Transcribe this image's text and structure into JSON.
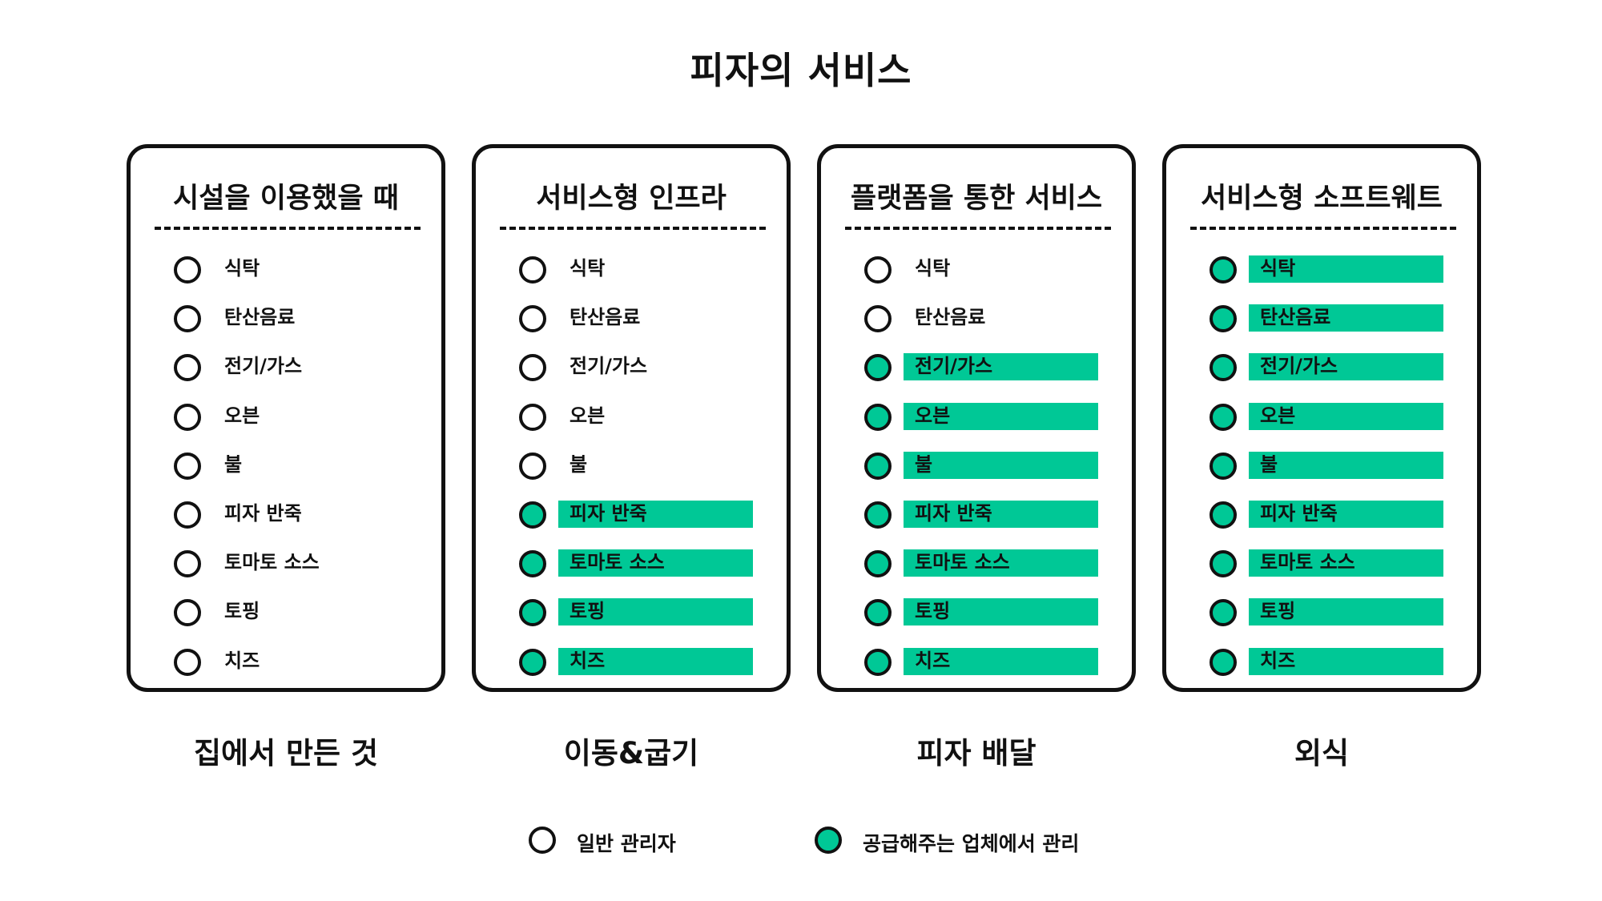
{
  "title": "피자의 서비스",
  "colors": {
    "accent": "#00c896",
    "outline": "#111111",
    "background": "#ffffff"
  },
  "cards": [
    {
      "title": "시설을 이용했을 때",
      "caption": "집에서 만든 것",
      "items": [
        {
          "label": "식탁",
          "managed_by_provider": false
        },
        {
          "label": "탄산음료",
          "managed_by_provider": false
        },
        {
          "label": "전기/가스",
          "managed_by_provider": false
        },
        {
          "label": "오븐",
          "managed_by_provider": false
        },
        {
          "label": "불",
          "managed_by_provider": false
        },
        {
          "label": "피자 반죽",
          "managed_by_provider": false
        },
        {
          "label": "토마토 소스",
          "managed_by_provider": false
        },
        {
          "label": "토핑",
          "managed_by_provider": false
        },
        {
          "label": "치즈",
          "managed_by_provider": false
        }
      ]
    },
    {
      "title": "서비스형 인프라",
      "caption": "이동&굽기",
      "items": [
        {
          "label": "식탁",
          "managed_by_provider": false
        },
        {
          "label": "탄산음료",
          "managed_by_provider": false
        },
        {
          "label": "전기/가스",
          "managed_by_provider": false
        },
        {
          "label": "오븐",
          "managed_by_provider": false
        },
        {
          "label": "불",
          "managed_by_provider": false
        },
        {
          "label": "피자 반죽",
          "managed_by_provider": true
        },
        {
          "label": "토마토 소스",
          "managed_by_provider": true
        },
        {
          "label": "토핑",
          "managed_by_provider": true
        },
        {
          "label": "치즈",
          "managed_by_provider": true
        }
      ]
    },
    {
      "title": "플랫폼을 통한 서비스",
      "caption": "피자 배달",
      "items": [
        {
          "label": "식탁",
          "managed_by_provider": false
        },
        {
          "label": "탄산음료",
          "managed_by_provider": false
        },
        {
          "label": "전기/가스",
          "managed_by_provider": true
        },
        {
          "label": "오븐",
          "managed_by_provider": true
        },
        {
          "label": "불",
          "managed_by_provider": true
        },
        {
          "label": "피자 반죽",
          "managed_by_provider": true
        },
        {
          "label": "토마토 소스",
          "managed_by_provider": true
        },
        {
          "label": "토핑",
          "managed_by_provider": true
        },
        {
          "label": "치즈",
          "managed_by_provider": true
        }
      ]
    },
    {
      "title": "서비스형 소프트웨트",
      "caption": "외식",
      "items": [
        {
          "label": "식탁",
          "managed_by_provider": true
        },
        {
          "label": "탄산음료",
          "managed_by_provider": true
        },
        {
          "label": "전기/가스",
          "managed_by_provider": true
        },
        {
          "label": "오븐",
          "managed_by_provider": true
        },
        {
          "label": "불",
          "managed_by_provider": true
        },
        {
          "label": "피자 반죽",
          "managed_by_provider": true
        },
        {
          "label": "토마토 소스",
          "managed_by_provider": true
        },
        {
          "label": "토핑",
          "managed_by_provider": true
        },
        {
          "label": "치즈",
          "managed_by_provider": true
        }
      ]
    }
  ],
  "legend": [
    {
      "label": "일반 관리자",
      "filled": false
    },
    {
      "label": "공급해주는 업체에서 관리",
      "filled": true
    }
  ]
}
